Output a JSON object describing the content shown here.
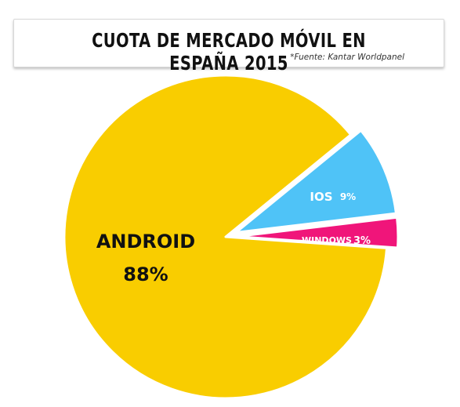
{
  "title": "CUOTA DE MERCADO MÓVIL EN ESPAÑA 2015",
  "source": "*Fuente: Kantar Worldpanel",
  "chart_data": {
    "type": "pie",
    "slices": [
      {
        "label": "ANDROID",
        "value": 88,
        "value_label": "88%",
        "color": "#F9CD00"
      },
      {
        "label": "IOS",
        "value": 9,
        "value_label": "9%",
        "color": "#4FC3F7"
      },
      {
        "label": "WINDOWS",
        "value": 3,
        "value_label": "3%",
        "color": "#F0157A"
      }
    ],
    "legend": "none"
  }
}
